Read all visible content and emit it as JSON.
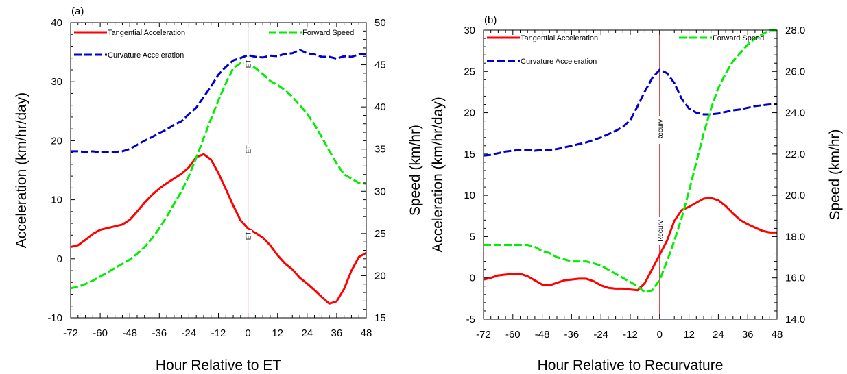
{
  "colors": {
    "tangential": "#ff0000",
    "curvature": "#0000cc",
    "forward_speed": "#00ee00",
    "event_line": "#cc0000",
    "axis": "#000000"
  },
  "chart_data": [
    {
      "type": "line",
      "panel_label": "(a)",
      "xlabel": "Hour Relative to ET",
      "ylabel": "Acceleration (km/hr/day)",
      "y2label": "Speed (km/hr)",
      "xlim": [
        -72,
        48
      ],
      "xticks": [
        -72,
        -60,
        -48,
        -36,
        -24,
        -12,
        0,
        12,
        24,
        36,
        48
      ],
      "ylim": [
        -10,
        40
      ],
      "yticks": [
        -10,
        0,
        10,
        20,
        30,
        40
      ],
      "y2lim": [
        15,
        50
      ],
      "y2ticks": [
        "15",
        "20",
        "25",
        "30",
        "35",
        "40",
        "45",
        "50"
      ],
      "event_x": 0,
      "event_labels": [
        "ET",
        "ET",
        "ET"
      ],
      "grid": false,
      "legend": [
        "Tangential Acceleration",
        "Forward Speed",
        "Curvature Acceleration"
      ],
      "x": [
        -72,
        -69,
        -66,
        -63,
        -60,
        -57,
        -54,
        -51,
        -48,
        -45,
        -42,
        -39,
        -36,
        -33,
        -30,
        -27,
        -24,
        -21,
        -18,
        -15,
        -12,
        -9,
        -6,
        -3,
        0,
        3,
        6,
        9,
        12,
        15,
        18,
        21,
        24,
        27,
        30,
        33,
        36,
        39,
        42,
        45,
        48
      ],
      "series": [
        {
          "name": "Tangential Acceleration",
          "axis": "left",
          "color": "#ff0000",
          "dash": "solid",
          "values": [
            2,
            2.3,
            3.2,
            4.2,
            4.9,
            5.2,
            5.5,
            5.8,
            6.6,
            8,
            9.5,
            10.8,
            11.9,
            12.8,
            13.6,
            14.4,
            15.5,
            17.2,
            17.7,
            16.8,
            14.5,
            11.8,
            9,
            6.5,
            5.1,
            4.4,
            3.6,
            2.3,
            0.6,
            -0.8,
            -1.8,
            -3.2,
            -4.2,
            -5.3,
            -6.5,
            -7.6,
            -7.2,
            -5.1,
            -2,
            0.3,
            1
          ]
        },
        {
          "name": "Curvature Acceleration",
          "axis": "left",
          "color": "#0000cc",
          "dash": "dashed",
          "values": [
            18.2,
            18.2,
            18.1,
            18.2,
            18,
            18.1,
            18.1,
            18.2,
            18.6,
            19.3,
            20,
            20.6,
            21.3,
            21.9,
            22.7,
            23.3,
            24.5,
            25.6,
            27.4,
            29.2,
            31.2,
            32.5,
            33.6,
            34,
            34.5,
            34.2,
            34.1,
            34.4,
            34.3,
            34.7,
            34.8,
            35.4,
            34.8,
            34.6,
            34.2,
            34.2,
            33.9,
            34.3,
            34.2,
            34.6,
            34.7
          ]
        },
        {
          "name": "Forward Speed",
          "axis": "right",
          "color": "#00ee00",
          "dash": "dashed",
          "values": [
            18.5,
            18.7,
            19,
            19.4,
            19.9,
            20.4,
            20.9,
            21.4,
            21.9,
            22.6,
            23.4,
            24.4,
            25.6,
            27,
            28.5,
            30,
            31.8,
            34,
            36.3,
            38.6,
            40.8,
            42.8,
            44.6,
            45.2,
            45.1,
            44.6,
            43.9,
            43.1,
            42.6,
            42,
            41.2,
            40.2,
            39.2,
            37.9,
            36.4,
            34.8,
            33.3,
            32,
            31.5,
            31,
            30.9
          ]
        }
      ]
    },
    {
      "type": "line",
      "panel_label": "(b)",
      "xlabel": "Hour Relative to Recurvature",
      "ylabel": "Acceleration (km/hr/day)",
      "y2label": "Speed (km/hr)",
      "xlim": [
        -72,
        48
      ],
      "xticks": [
        -72,
        -60,
        -48,
        -36,
        -24,
        -12,
        0,
        12,
        24,
        36,
        48
      ],
      "ylim": [
        -5,
        30
      ],
      "yticks": [
        -5,
        0,
        5,
        10,
        15,
        20,
        25,
        30
      ],
      "y2lim": [
        14,
        28
      ],
      "y2ticks": [
        "14.0",
        "16.0",
        "18.0",
        "20.0",
        "22.0",
        "24.0",
        "26.0",
        "28.0"
      ],
      "event_x": 0,
      "event_labels": [
        "Recurv",
        "Recurv"
      ],
      "grid": false,
      "legend": [
        "Tangential Acceleration",
        "Forward Speed",
        "Curvature Acceleration"
      ],
      "x": [
        -72,
        -69,
        -66,
        -63,
        -60,
        -57,
        -54,
        -51,
        -48,
        -45,
        -42,
        -39,
        -36,
        -33,
        -30,
        -27,
        -24,
        -21,
        -18,
        -15,
        -12,
        -9,
        -6,
        -3,
        0,
        3,
        6,
        9,
        12,
        15,
        18,
        21,
        24,
        27,
        30,
        33,
        36,
        39,
        42,
        45,
        48
      ],
      "series": [
        {
          "name": "Tangential Acceleration",
          "axis": "left",
          "color": "#ff0000",
          "dash": "solid",
          "values": [
            -0.2,
            0,
            0.3,
            0.4,
            0.5,
            0.5,
            0.2,
            -0.3,
            -0.8,
            -0.9,
            -0.6,
            -0.3,
            -0.2,
            -0.1,
            -0.1,
            -0.4,
            -0.9,
            -1.2,
            -1.3,
            -1.3,
            -1.4,
            -1.5,
            -0.6,
            1.1,
            2.8,
            4.5,
            6.9,
            8.2,
            8.6,
            9.1,
            9.6,
            9.7,
            9.4,
            8.7,
            7.8,
            7,
            6.5,
            6.1,
            5.7,
            5.5,
            5.5
          ]
        },
        {
          "name": "Curvature Acceleration",
          "axis": "left",
          "color": "#0000cc",
          "dash": "dashed",
          "values": [
            14.8,
            14.9,
            15.1,
            15.3,
            15.4,
            15.5,
            15.5,
            15.4,
            15.5,
            15.5,
            15.6,
            15.8,
            16,
            16.2,
            16.4,
            16.7,
            17,
            17.4,
            17.8,
            18.3,
            19.1,
            20.8,
            22.6,
            24.2,
            25.2,
            24.8,
            23.6,
            21.7,
            20.5,
            20,
            19.8,
            19.8,
            19.9,
            20.1,
            20.3,
            20.4,
            20.6,
            20.8,
            20.9,
            21,
            21.1
          ]
        },
        {
          "name": "Forward Speed",
          "axis": "right",
          "color": "#00ee00",
          "dash": "dashed",
          "values": [
            17.6,
            17.6,
            17.6,
            17.6,
            17.6,
            17.6,
            17.6,
            17.5,
            17.3,
            17.2,
            17.0,
            16.9,
            16.8,
            16.8,
            16.8,
            16.7,
            16.6,
            16.4,
            16.2,
            16,
            15.8,
            15.6,
            15.3,
            15.4,
            15.9,
            16.8,
            17.8,
            18.9,
            20.2,
            21.6,
            23,
            24.2,
            25.2,
            25.9,
            26.5,
            26.9,
            27.3,
            27.6,
            27.8,
            28,
            28
          ]
        }
      ]
    }
  ]
}
